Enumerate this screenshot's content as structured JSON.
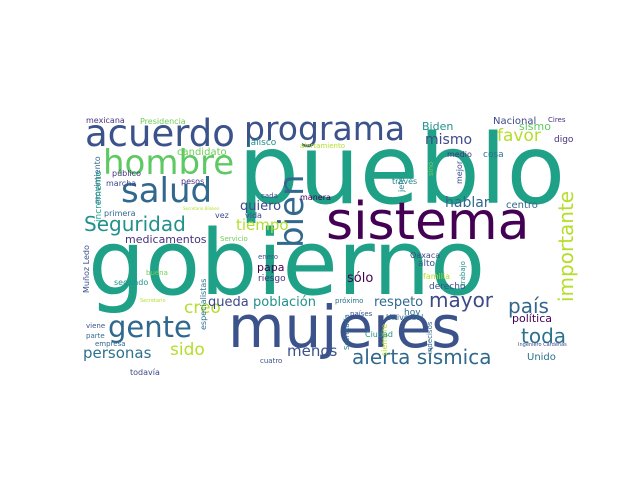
{
  "words": [
    {
      "text": "gobierno",
      "color": "#1fa187"
    },
    {
      "text": "pueblo",
      "color": "#1fa187"
    },
    {
      "text": "sistema",
      "color": "#440154"
    },
    {
      "text": "mujeres",
      "color": "#3b528b"
    },
    {
      "text": "programa",
      "color": "#3b528b"
    },
    {
      "text": "acuerdo",
      "color": "#3b528b"
    },
    {
      "text": "hombre",
      "color": "#5ec962"
    },
    {
      "text": "salud",
      "color": "#31688e"
    },
    {
      "text": "gente",
      "color": "#31688e"
    },
    {
      "text": "bien",
      "color": "#31688e"
    },
    {
      "text": "importante",
      "color": "#b5de2b"
    },
    {
      "text": "Seguridad",
      "color": "#21918c"
    },
    {
      "text": "alerta sísmica",
      "color": "#31688e"
    },
    {
      "text": "país",
      "color": "#31688e"
    },
    {
      "text": "toda",
      "color": "#2c728e"
    },
    {
      "text": "mayor",
      "color": "#3e4989"
    },
    {
      "text": "favor",
      "color": "#b5de2b"
    },
    {
      "text": "sido",
      "color": "#b5de2b"
    },
    {
      "text": "personas",
      "color": "#2c728e"
    },
    {
      "text": "creo",
      "color": "#b5de2b"
    },
    {
      "text": "menos",
      "color": "#3b528b"
    },
    {
      "text": "tiempo",
      "color": "#b5de2b"
    },
    {
      "text": "mismo",
      "color": "#3e4989"
    },
    {
      "text": "hablar",
      "color": "#31688e"
    },
    {
      "text": "quiero",
      "color": "#3e4989"
    },
    {
      "text": "queda",
      "color": "#3e4989"
    },
    {
      "text": "población",
      "color": "#21918c"
    },
    {
      "text": "respeto",
      "color": "#31688e"
    },
    {
      "text": "sólo",
      "color": "#440154"
    },
    {
      "text": "sismo",
      "color": "#5ec962"
    },
    {
      "text": "Biden",
      "color": "#21918c"
    },
    {
      "text": "Nacional",
      "color": "#3e4989"
    },
    {
      "text": "medicamentos",
      "color": "#46327e"
    },
    {
      "text": "política",
      "color": "#440154"
    },
    {
      "text": "papa",
      "color": "#440154"
    },
    {
      "text": "Unido",
      "color": "#2c728e"
    },
    {
      "text": "candidato",
      "color": "#6ece58"
    },
    {
      "text": "centro",
      "color": "#31688e"
    },
    {
      "text": "derecho",
      "color": "#3b528b"
    },
    {
      "text": "alto",
      "color": "#3b528b"
    },
    {
      "text": "hoy",
      "color": "#2c728e"
    },
    {
      "text": "riesgo",
      "color": "#46327e"
    },
    {
      "text": "especialistas",
      "color": "#2c728e"
    },
    {
      "text": "Jalisco",
      "color": "#21918c"
    },
    {
      "text": "movimiento",
      "color": "#31688e"
    },
    {
      "text": "incremento",
      "color": "#1fa187"
    },
    {
      "text": "mexicana",
      "color": "#46327e"
    },
    {
      "text": "Presidencia",
      "color": "#6ece58"
    },
    {
      "text": "público",
      "color": "#46327e"
    },
    {
      "text": "marcha",
      "color": "#3e4989"
    },
    {
      "text": "pesos",
      "color": "#46327e"
    },
    {
      "text": "cada",
      "color": "#3e4989"
    },
    {
      "text": "vida",
      "color": "#3e4989"
    },
    {
      "text": "vez",
      "color": "#3e4989"
    },
    {
      "text": "manera",
      "color": "#440154"
    },
    {
      "text": "Cires",
      "color": "#46327e"
    },
    {
      "text": "digo",
      "color": "#46327e"
    },
    {
      "text": "cosa",
      "color": "#2c728e"
    },
    {
      "text": "medio",
      "color": "#46327e"
    },
    {
      "text": "mejor",
      "color": "#3e4989"
    },
    {
      "text": "través",
      "color": "#26828e"
    },
    {
      "text": "jefe",
      "color": "#26828e"
    },
    {
      "text": "sino",
      "color": "#6ece58"
    },
    {
      "text": "alertamiento",
      "color": "#b5de2b"
    },
    {
      "text": "primera",
      "color": "#31688e"
    },
    {
      "text": "Servicio",
      "color": "#6ece58"
    },
    {
      "text": "enero",
      "color": "#3b528b"
    },
    {
      "text": "segundo",
      "color": "#21918c"
    },
    {
      "text": "buena",
      "color": "#6ece58"
    },
    {
      "text": "Muñoz Ledo",
      "color": "#3b528b"
    },
    {
      "text": "todavía",
      "color": "#3e4989"
    },
    {
      "text": "empresa",
      "color": "#31688e"
    },
    {
      "text": "viene",
      "color": "#3b528b"
    },
    {
      "text": "parte",
      "color": "#31688e"
    },
    {
      "text": "Secretaría",
      "color": "#2c728e"
    },
    {
      "text": "siempre",
      "color": "#b5de2b"
    },
    {
      "text": "Universal",
      "color": "#31688e"
    },
    {
      "text": "países",
      "color": "#3b528b"
    },
    {
      "text": "próximo",
      "color": "#2c728e"
    },
    {
      "text": "Ciudad",
      "color": "#21918c"
    },
    {
      "text": "Oaxaca",
      "color": "#3e4989"
    },
    {
      "text": "familia",
      "color": "#b5de2b"
    },
    {
      "text": "trabajo",
      "color": "#21918c"
    },
    {
      "text": "indecisos",
      "color": "#31688e"
    },
    {
      "text": "cuatro",
      "color": "#3b528b"
    },
    {
      "text": "Ingeniero Cárdenas",
      "color": "#3e4989"
    },
    {
      "text": "Secretario",
      "color": "#b5de2b"
    },
    {
      "text": "Secretario Blinken",
      "color": "#b5de2b"
    }
  ]
}
